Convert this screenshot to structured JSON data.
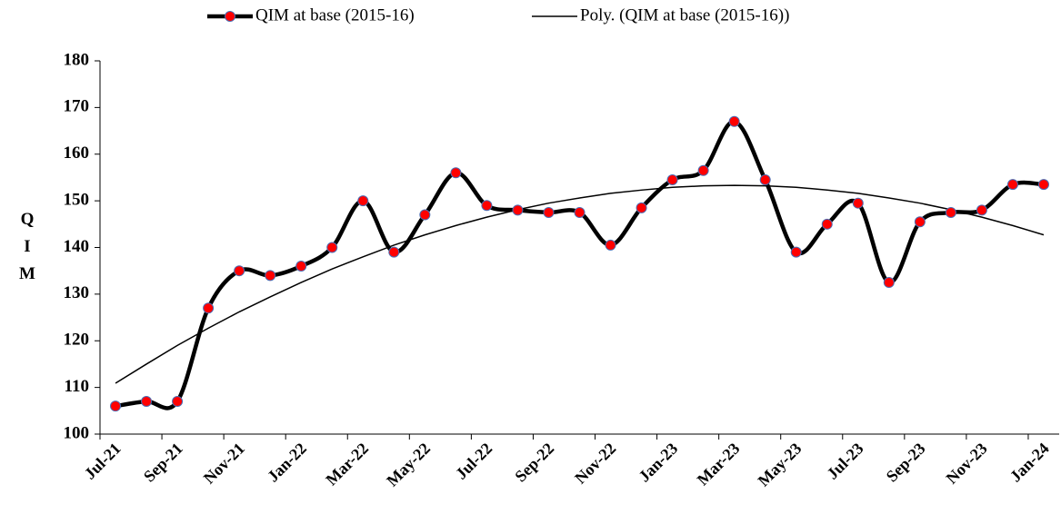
{
  "chart_data": {
    "type": "line",
    "y_label": "QIM",
    "categories": [
      "Jul-21",
      null,
      "Sep-21",
      null,
      "Nov-21",
      null,
      "Jan-22",
      null,
      "Mar-22",
      null,
      "May-22",
      null,
      "Jul-22",
      null,
      "Sep-22",
      null,
      "Nov-22",
      null,
      "Jan-23",
      null,
      "Mar-23",
      null,
      "May-23",
      null,
      "Jul-23",
      null,
      "Sep-23",
      null,
      "Nov-23",
      null,
      "Jan-24"
    ],
    "series": [
      {
        "name": "QIM at base (2015-16)",
        "color": "#000000",
        "marker_color": "#ff0000",
        "marker_edge": "#4a6cb3",
        "smooth": true,
        "values": [
          106,
          107,
          107,
          127,
          135,
          134,
          136,
          140,
          150,
          139,
          147,
          156,
          149,
          148,
          147.5,
          147.5,
          140.5,
          148.5,
          154.5,
          156.5,
          167,
          154.5,
          139,
          145,
          149.5,
          132.5,
          145.5,
          147.5,
          148,
          153.5,
          153.5
        ]
      },
      {
        "name": "Poly. (QIM at base (2015-16))",
        "color": "#000000",
        "smooth": false,
        "values": [
          110.9,
          115.0,
          119.0,
          122.7,
          126.2,
          129.4,
          132.5,
          135.4,
          138.0,
          140.5,
          142.7,
          144.7,
          146.5,
          148.1,
          149.5,
          150.6,
          151.6,
          152.3,
          152.9,
          153.2,
          153.3,
          153.2,
          152.9,
          152.3,
          151.6,
          150.6,
          149.5,
          148.1,
          146.5,
          144.7,
          142.7
        ]
      }
    ],
    "ylim": [
      100,
      180
    ],
    "yticks": [
      100,
      110,
      120,
      130,
      140,
      150,
      160,
      170,
      180
    ],
    "grid": false
  }
}
